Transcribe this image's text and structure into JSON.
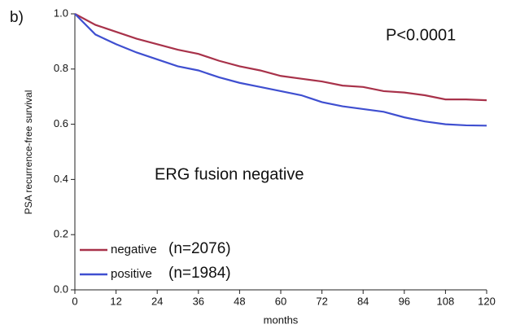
{
  "chart_data": {
    "type": "line",
    "panel_label": "b)",
    "annotations": [
      "P<0.0001",
      "ERG fusion negative"
    ],
    "legend_counts": [
      "(n=2076)",
      "(n=1984)"
    ],
    "ylabel": "PSA recurrence-free survival",
    "xlabel": "months",
    "x": [
      0,
      6,
      12,
      18,
      24,
      30,
      36,
      42,
      48,
      54,
      60,
      66,
      72,
      78,
      84,
      90,
      96,
      102,
      108,
      114,
      120
    ],
    "series": [
      {
        "name": "negative",
        "color": "#a8324a",
        "values": [
          1.0,
          0.96,
          0.935,
          0.91,
          0.89,
          0.87,
          0.855,
          0.83,
          0.81,
          0.795,
          0.775,
          0.765,
          0.755,
          0.74,
          0.735,
          0.72,
          0.715,
          0.705,
          0.69,
          0.69,
          0.687
        ]
      },
      {
        "name": "positive",
        "color": "#3f4fd0",
        "values": [
          1.0,
          0.925,
          0.89,
          0.86,
          0.835,
          0.81,
          0.795,
          0.77,
          0.75,
          0.735,
          0.72,
          0.705,
          0.68,
          0.665,
          0.655,
          0.645,
          0.625,
          0.61,
          0.6,
          0.596,
          0.595
        ]
      }
    ],
    "xlim": [
      0,
      120
    ],
    "xticks": [
      0,
      12,
      24,
      36,
      48,
      60,
      72,
      84,
      96,
      108,
      120
    ],
    "ylim": [
      0,
      1
    ],
    "yticks": [
      {
        "value": 0,
        "label": "0.0"
      },
      {
        "value": 0.2,
        "label": "0.2"
      },
      {
        "value": 0.4,
        "label": "0.4"
      },
      {
        "value": 0.6,
        "label": "0.6"
      },
      {
        "value": 0.8,
        "label": "0.8"
      },
      {
        "value": 1,
        "label": "1.0"
      }
    ]
  }
}
